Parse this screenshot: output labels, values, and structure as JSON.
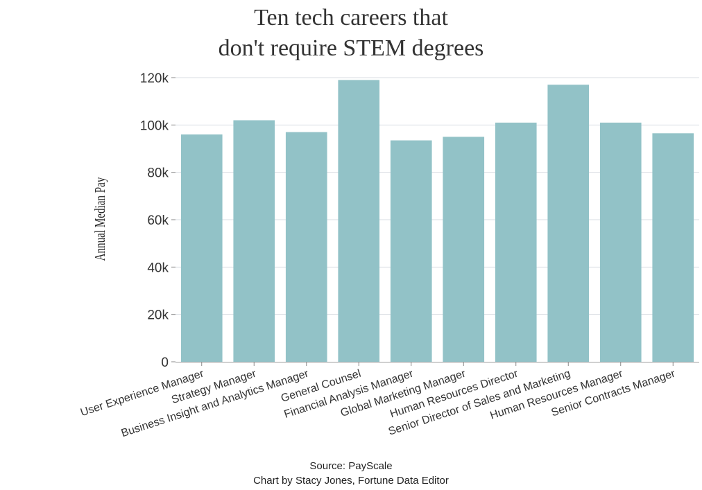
{
  "chart_data": {
    "type": "bar",
    "title_lines": [
      "Ten tech careers that",
      "don't require STEM degrees"
    ],
    "ylabel": "Annual Median Pay",
    "xlabel": "",
    "categories": [
      "User Experience Manager",
      "Strategy Manager",
      "Business Insight and Analytics Manager",
      "General Counsel",
      "Financial Analysis Manager",
      "Global Marketing Manager",
      "Human Resources Director",
      "Senior Director of Sales and Marketing",
      "Human Resources Manager",
      "Senior Contracts Manager"
    ],
    "values": [
      96000,
      102000,
      97000,
      119000,
      93500,
      95000,
      101000,
      117000,
      101000,
      96500
    ],
    "ylim": [
      0,
      120000
    ],
    "yticks": [
      0,
      20000,
      40000,
      60000,
      80000,
      100000,
      120000
    ],
    "ytick_labels": [
      "0",
      "20k",
      "40k",
      "60k",
      "80k",
      "100k",
      "120k"
    ],
    "grid": true,
    "bar_color": "#92c2c7",
    "grid_color": "#d9dde3",
    "source_lines": [
      "Source: PayScale",
      "Chart by Stacy Jones, Fortune Data Editor"
    ]
  }
}
